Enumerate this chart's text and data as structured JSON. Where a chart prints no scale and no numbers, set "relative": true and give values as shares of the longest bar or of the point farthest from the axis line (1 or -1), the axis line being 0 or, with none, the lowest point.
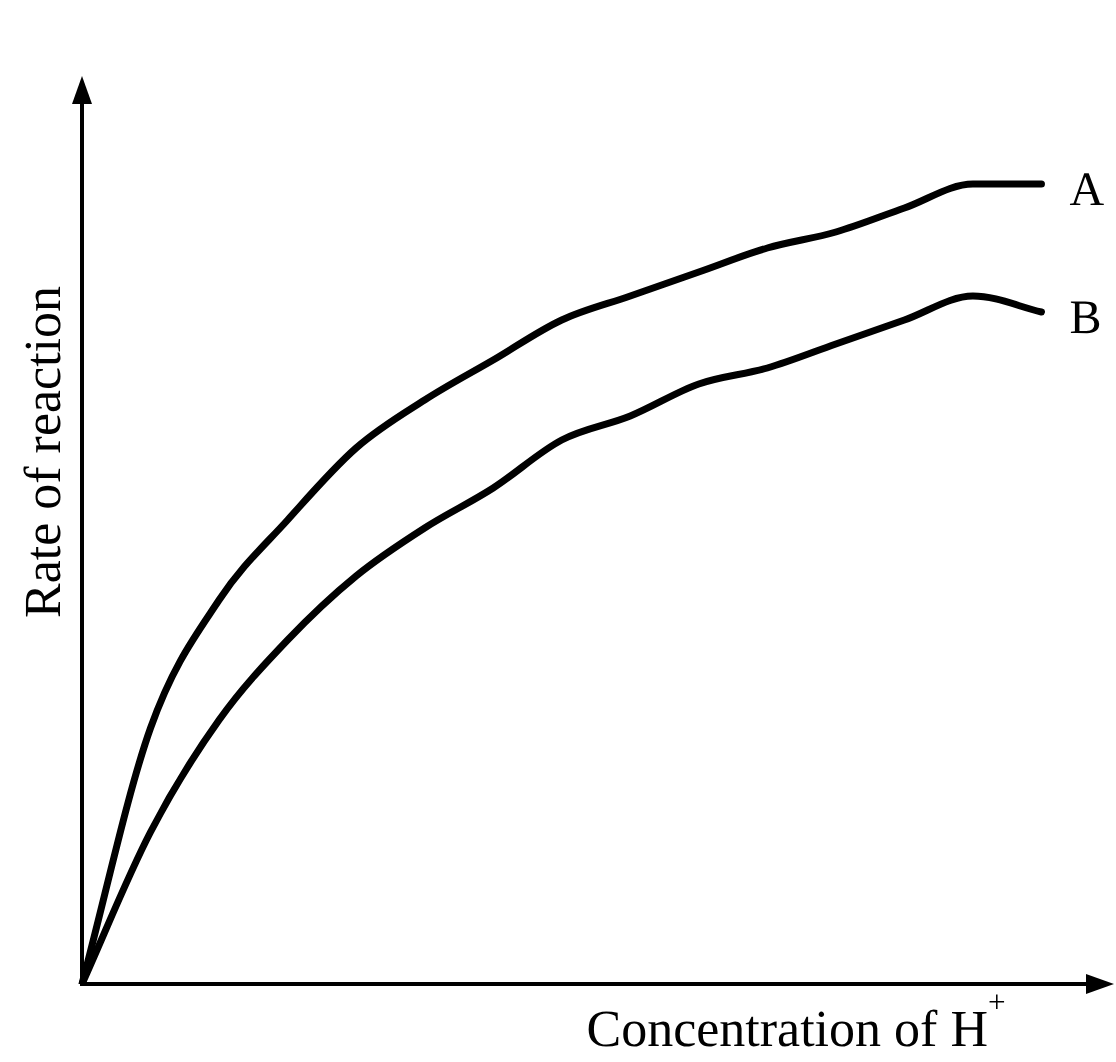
{
  "chart_data": {
    "type": "line",
    "relative": true,
    "xlabel": "Concentration of H$^{+}$",
    "ylabel": "Rate of reaction",
    "categories": [
      null,
      null,
      null,
      null,
      null,
      null,
      null,
      null,
      null,
      null,
      null,
      null,
      null,
      null,
      null,
      null
    ],
    "series": [
      {
        "name": "A",
        "color": "#000000",
        "values": [
          0,
          0.32,
          0.48,
          0.58,
          0.67,
          0.73,
          0.78,
          0.83,
          0.86,
          0.89,
          0.92,
          0.94,
          0.97,
          1,
          1,
          null
        ]
      },
      {
        "name": "B",
        "color": "#000000",
        "values": [
          0,
          0.19,
          0.33,
          0.43,
          0.51,
          0.57,
          0.62,
          0.68,
          0.71,
          0.75,
          0.77,
          0.8,
          0.83,
          0.86,
          0.84,
          null
        ]
      }
    ],
    "legend": false,
    "grid": false,
    "marker": "none",
    "line_style": "solid"
  }
}
